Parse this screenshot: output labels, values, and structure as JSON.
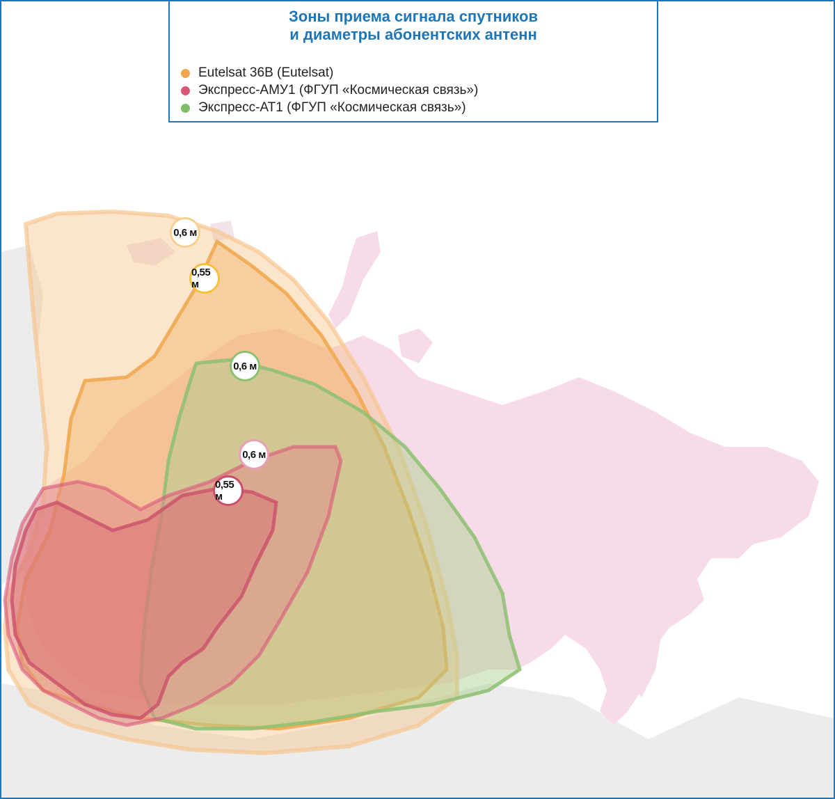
{
  "title": {
    "line1": "Зоны приема сигнала спутников",
    "line2": "и диаметры абонентских антенн"
  },
  "legend": [
    {
      "label": "Eutelsat 36B (Eutelsat)",
      "color": "#f0a64a"
    },
    {
      "label": "Экспресс-АМУ1 (ФГУП «Космическая связь»)",
      "color": "#d9577a"
    },
    {
      "label": "Экспресс-АТ1  (ФГУП «Космическая связь»)",
      "color": "#7fbf6a"
    }
  ],
  "badges": [
    {
      "label": "0,6 м",
      "satellite": "Eutelsat 36B"
    },
    {
      "label": "0,55 м",
      "satellite": "Eutelsat 36B"
    },
    {
      "label": "0,6 м",
      "satellite": "Экспресс-АТ1"
    },
    {
      "label": "0,6 м",
      "satellite": "Экспресс-АМУ1"
    },
    {
      "label": "0,55 м",
      "satellite": "Экспресс-АМУ1"
    }
  ],
  "colors": {
    "frame": "#1e76b8",
    "russia": "#f7dbe8",
    "land": "#ececec",
    "eutelsat": "#f0a64a",
    "amu1": "#d9577a",
    "at1": "#7fbf6a"
  }
}
